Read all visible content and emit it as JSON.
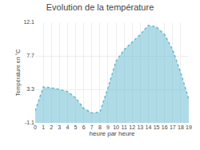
{
  "chart_data": {
    "type": "area",
    "title": "Evolution de la température",
    "xlabel": "heure par heure",
    "ylabel": "Température en °C",
    "x": [
      0,
      1,
      2,
      3,
      4,
      5,
      6,
      7,
      8,
      9,
      10,
      11,
      12,
      13,
      14,
      15,
      16,
      17,
      18,
      19
    ],
    "values": [
      0.5,
      3.6,
      3.5,
      3.3,
      3.0,
      2.2,
      0.8,
      0.2,
      0.3,
      3.5,
      7.0,
      8.5,
      9.5,
      10.5,
      11.7,
      11.5,
      10.5,
      8.5,
      5.5,
      2.0
    ],
    "color": "#60b8d0",
    "line_style": "dotted",
    "xlim": [
      0,
      19
    ],
    "xticks": [
      0,
      1,
      2,
      3,
      4,
      5,
      6,
      7,
      8,
      9,
      10,
      11,
      12,
      13,
      14,
      15,
      16,
      17,
      18,
      19
    ],
    "ylim": [
      -1.1,
      12.1
    ],
    "yticks": [
      -1.1,
      3.3,
      7.7,
      12.1
    ],
    "grid": true
  }
}
